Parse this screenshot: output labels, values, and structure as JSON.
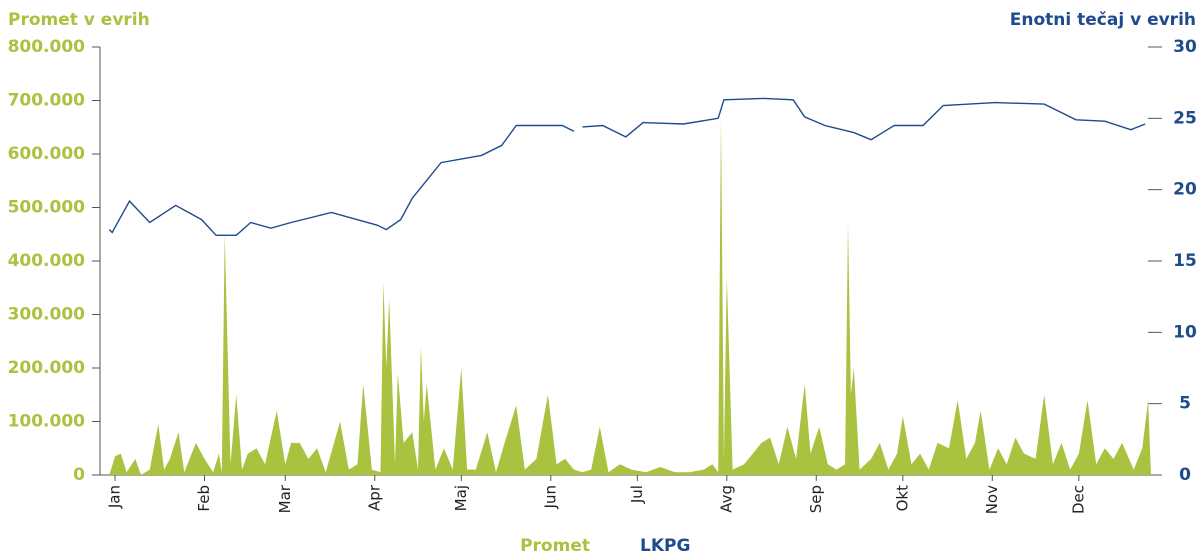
{
  "chart_data": {
    "type": "area-line",
    "ylabel": "Promet v evrih",
    "y2label": "Enotni tečaj v evrih",
    "xlim": [
      -2,
      360
    ],
    "xticks": [
      {
        "value": 1,
        "label": "Jan"
      },
      {
        "value": 32,
        "label": "Feb"
      },
      {
        "value": 60,
        "label": "Mar"
      },
      {
        "value": 91,
        "label": "Apr"
      },
      {
        "value": 121,
        "label": "Maj"
      },
      {
        "value": 152,
        "label": "Jun"
      },
      {
        "value": 182,
        "label": "Jul"
      },
      {
        "value": 213,
        "label": "Avg"
      },
      {
        "value": 244,
        "label": "Sep"
      },
      {
        "value": 274,
        "label": "Okt"
      },
      {
        "value": 305,
        "label": "Nov"
      },
      {
        "value": 335,
        "label": "Dec"
      }
    ],
    "ylim": [
      0,
      800000
    ],
    "yticks": [
      0,
      {
        "value": 100000,
        "label": "100.000"
      },
      {
        "value": 200000,
        "label": "200.000"
      },
      {
        "value": 300000,
        "label": "300.000"
      },
      {
        "value": 400000,
        "label": "400.000"
      },
      {
        "value": 500000,
        "label": "500.000"
      },
      {
        "value": 600000,
        "label": "600.000"
      },
      {
        "value": 700000,
        "label": "700.000"
      },
      {
        "value": 800000,
        "label": "800.000"
      }
    ],
    "y2lim": [
      0,
      30
    ],
    "y2ticks": [
      0,
      5,
      10,
      15,
      20,
      25,
      30
    ],
    "series": [
      {
        "name": "Promet",
        "color": "#a9c23f",
        "kind": "area",
        "x": [
          -1,
          1,
          3,
          5,
          8,
          10,
          13,
          16,
          18,
          20,
          23,
          25,
          29,
          32,
          35,
          37,
          38,
          39,
          41,
          43,
          45,
          47,
          50,
          53,
          57,
          60,
          62,
          65,
          68,
          71,
          74,
          79,
          82,
          85,
          87,
          90,
          93,
          94,
          95,
          96,
          98,
          99,
          101,
          104,
          106,
          107,
          108,
          109,
          112,
          115,
          118,
          121,
          123,
          126,
          130,
          133,
          136,
          140,
          143,
          147,
          151,
          154,
          157,
          160,
          163,
          166,
          169,
          172,
          176,
          180,
          185,
          190,
          195,
          200,
          205,
          208,
          210,
          211,
          212,
          213,
          215,
          219,
          222,
          225,
          228,
          231,
          234,
          237,
          240,
          242,
          245,
          248,
          251,
          254,
          255,
          256,
          257,
          259,
          263,
          266,
          269,
          272,
          274,
          277,
          280,
          283,
          286,
          290,
          293,
          296,
          299,
          301,
          304,
          307,
          310,
          313,
          316,
          320,
          323,
          326,
          329,
          332,
          335,
          338,
          341,
          344,
          347,
          350,
          354,
          357,
          359,
          360
        ],
        "values": [
          0,
          35000,
          40000,
          5000,
          30000,
          0,
          10000,
          95000,
          10000,
          30000,
          80000,
          5000,
          60000,
          30000,
          5000,
          40000,
          5000,
          450000,
          20000,
          150000,
          10000,
          40000,
          50000,
          20000,
          120000,
          20000,
          60000,
          60000,
          30000,
          50000,
          5000,
          100000,
          10000,
          20000,
          170000,
          10000,
          5000,
          360000,
          200000,
          330000,
          20000,
          190000,
          60000,
          80000,
          10000,
          240000,
          100000,
          170000,
          10000,
          50000,
          10000,
          200000,
          10000,
          10000,
          80000,
          5000,
          60000,
          130000,
          10000,
          30000,
          150000,
          20000,
          30000,
          10000,
          5000,
          10000,
          90000,
          5000,
          20000,
          10000,
          5000,
          15000,
          5000,
          5000,
          10000,
          20000,
          5000,
          670000,
          30000,
          370000,
          10000,
          20000,
          40000,
          60000,
          70000,
          20000,
          90000,
          30000,
          170000,
          40000,
          90000,
          20000,
          10000,
          20000,
          470000,
          150000,
          200000,
          10000,
          30000,
          60000,
          10000,
          40000,
          110000,
          20000,
          40000,
          10000,
          60000,
          50000,
          140000,
          30000,
          60000,
          120000,
          10000,
          50000,
          20000,
          70000,
          40000,
          30000,
          150000,
          20000,
          60000,
          10000,
          40000,
          140000,
          20000,
          50000,
          30000,
          60000,
          10000,
          50000,
          140000,
          0
        ]
      },
      {
        "name": "LKPG",
        "color": "#1f4b8e",
        "kind": "line",
        "axis": "y2",
        "x": [
          -1,
          0,
          6,
          13,
          22,
          31,
          36,
          43,
          48,
          55,
          62,
          76,
          92,
          95,
          100,
          104,
          114,
          128,
          135,
          140,
          156,
          160,
          161,
          163,
          170,
          178,
          184,
          198,
          210,
          212,
          226,
          236,
          240,
          247,
          257,
          263,
          271,
          281,
          288,
          306,
          323,
          334,
          344,
          353,
          358
        ],
        "values": [
          17.2,
          17.0,
          19.2,
          17.7,
          18.9,
          17.9,
          16.8,
          16.8,
          17.7,
          17.3,
          17.7,
          18.4,
          17.5,
          17.2,
          17.9,
          19.4,
          21.9,
          22.4,
          23.1,
          24.5,
          24.5,
          24.1,
          null,
          24.4,
          24.5,
          23.7,
          24.7,
          24.6,
          25.0,
          26.3,
          26.4,
          26.3,
          25.1,
          24.5,
          24.0,
          23.5,
          24.5,
          24.5,
          25.9,
          26.1,
          26.0,
          24.9,
          24.8,
          24.2,
          24.6
        ]
      }
    ]
  }
}
